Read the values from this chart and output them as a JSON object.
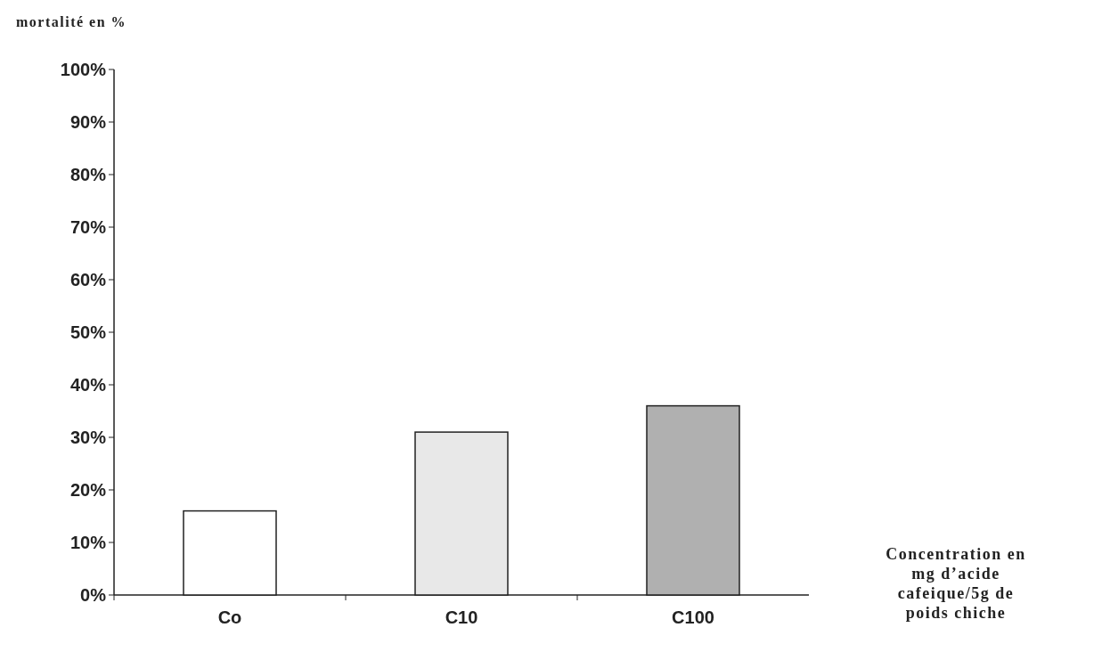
{
  "chart_data": {
    "type": "bar",
    "ylabel": "mortalité en %",
    "xlabel": "Concentration en mg d’acide cafeique/5g de poids chiche",
    "categories": [
      "Co",
      "C10",
      "C100"
    ],
    "values": [
      16,
      31,
      36
    ],
    "colors": [
      "#ffffff",
      "#e8e8e8",
      "#b0b0b0"
    ],
    "ylim": [
      0,
      100
    ],
    "yticks": [
      {
        "value": 0,
        "label": "0%"
      },
      {
        "value": 10,
        "label": "10%"
      },
      {
        "value": 20,
        "label": "20%"
      },
      {
        "value": 30,
        "label": "30%"
      },
      {
        "value": 40,
        "label": "40%"
      },
      {
        "value": 50,
        "label": "50%"
      },
      {
        "value": 60,
        "label": "60%"
      },
      {
        "value": 70,
        "label": "70%"
      },
      {
        "value": 80,
        "label": "80%"
      },
      {
        "value": 90,
        "label": "90%"
      },
      {
        "value": 100,
        "label": "100%"
      }
    ],
    "grid": false
  }
}
